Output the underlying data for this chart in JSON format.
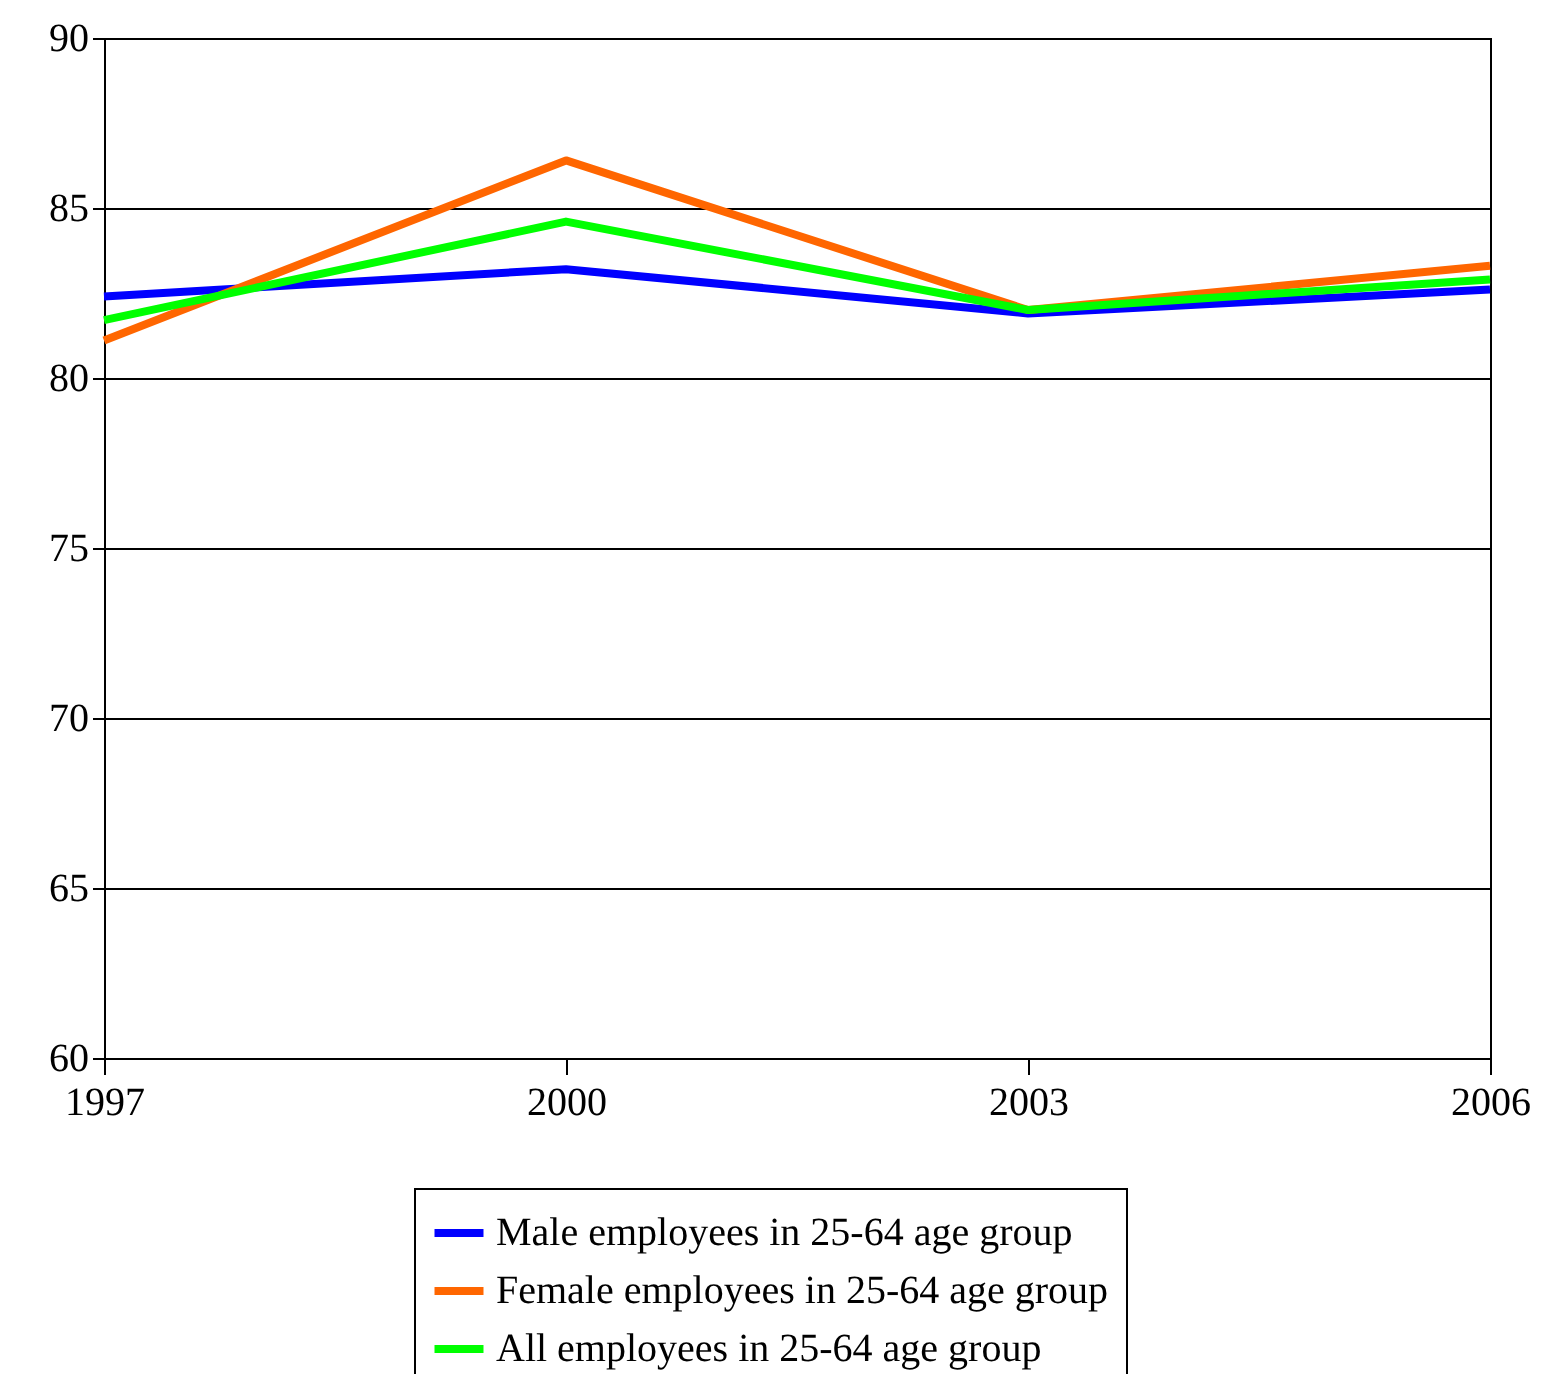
{
  "chart_data": {
    "type": "line",
    "x": [
      1997,
      2000,
      2003,
      2006
    ],
    "series": [
      {
        "name": "Male employees in 25-64 age group",
        "color": "#0000ff",
        "values": [
          82.4,
          83.2,
          81.9,
          82.6
        ]
      },
      {
        "name": "Female employees in 25-64 age group",
        "color": "#ff6600",
        "values": [
          81.1,
          86.4,
          82.0,
          83.3
        ]
      },
      {
        "name": "All employees in 25-64 age group",
        "color": "#00ff00",
        "values": [
          81.7,
          84.6,
          82.0,
          82.9
        ]
      }
    ],
    "xlim": [
      1997,
      2006
    ],
    "xticks": [
      1997,
      2000,
      2003,
      2006
    ],
    "ylim": [
      60,
      90
    ],
    "yticks": [
      60,
      65,
      70,
      75,
      80,
      85,
      90
    ],
    "grid": "y",
    "legend": "bottom",
    "marker": "none",
    "line_style": "solid"
  }
}
